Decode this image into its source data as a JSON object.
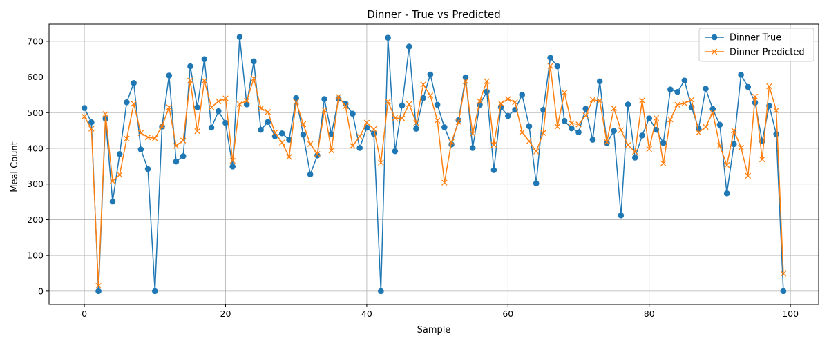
{
  "chart_data": {
    "type": "line",
    "title": "Dinner - True vs Predicted",
    "xlabel": "Sample",
    "ylabel": "Meal Count",
    "xlim": [
      -5,
      104
    ],
    "ylim": [
      -37,
      748
    ],
    "xticks": [
      0,
      20,
      40,
      60,
      80,
      100
    ],
    "yticks": [
      0,
      100,
      200,
      300,
      400,
      500,
      600,
      700
    ],
    "grid": true,
    "legend_position": "top-right",
    "series": [
      {
        "name": "Dinner True",
        "color": "#1f77b4",
        "marker": "circle",
        "values": [
          513,
          473,
          0,
          483,
          251,
          384,
          529,
          583,
          397,
          342,
          0,
          461,
          604,
          363,
          378,
          630,
          515,
          650,
          458,
          504,
          471,
          349,
          712,
          523,
          644,
          452,
          474,
          434,
          442,
          424,
          541,
          438,
          327,
          380,
          538,
          440,
          539,
          525,
          497,
          401,
          458,
          441,
          0,
          710,
          392,
          520,
          685,
          455,
          541,
          607,
          522,
          459,
          411,
          479,
          599,
          401,
          522,
          559,
          339,
          515,
          491,
          508,
          550,
          462,
          302,
          508,
          654,
          630,
          477,
          456,
          445,
          511,
          424,
          588,
          415,
          449,
          212,
          523,
          374,
          436,
          484,
          452,
          415,
          565,
          558,
          590,
          515,
          455,
          567,
          510,
          466,
          274,
          412,
          606,
          572,
          528,
          420,
          519,
          440,
          0
        ]
      },
      {
        "name": "Dinner Predicted",
        "color": "#ff7f0e",
        "marker": "x",
        "values": [
          489,
          455,
          15,
          496,
          308,
          326,
          427,
          525,
          443,
          431,
          428,
          462,
          515,
          407,
          422,
          590,
          448,
          589,
          515,
          532,
          540,
          365,
          524,
          533,
          596,
          512,
          502,
          444,
          416,
          376,
          530,
          468,
          412,
          384,
          507,
          394,
          545,
          518,
          407,
          433,
          472,
          454,
          360,
          531,
          485,
          484,
          524,
          471,
          579,
          548,
          478,
          304,
          418,
          474,
          588,
          441,
          532,
          588,
          410,
          526,
          538,
          529,
          445,
          420,
          391,
          443,
          631,
          461,
          556,
          470,
          467,
          492,
          536,
          533,
          418,
          512,
          451,
          409,
          390,
          534,
          398,
          485,
          358,
          481,
          522,
          526,
          536,
          444,
          460,
          500,
          407,
          353,
          450,
          402,
          323,
          545,
          369,
          574,
          506,
          49
        ]
      }
    ]
  }
}
